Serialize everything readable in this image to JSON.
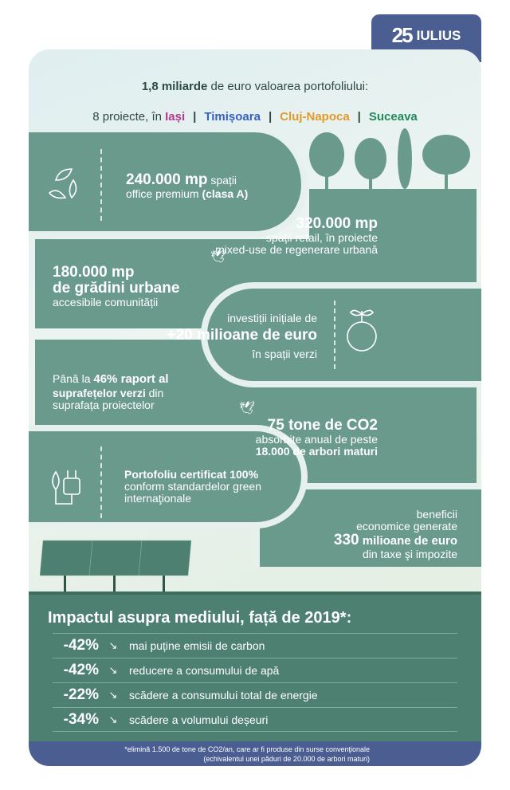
{
  "logo": {
    "number": "25",
    "name": "IULIUS"
  },
  "header": {
    "value_bold": "1,8 miliarde",
    "value_rest": " de euro valoarea portofoliului:",
    "projects_prefix": "8 proiecte, în ",
    "cities": [
      {
        "name": "Iași",
        "color": "#b5388f"
      },
      {
        "name": "Timișoara",
        "color": "#3560c0"
      },
      {
        "name": "Cluj-Napoca",
        "color": "#e39a2a"
      },
      {
        "name": "Suceava",
        "color": "#1f8a5a"
      }
    ],
    "separator": "|"
  },
  "colors": {
    "block": "#6a9a8c",
    "impact": "#4d8070",
    "accent": "#4b5e92"
  },
  "stats": {
    "office": {
      "bold": "240.000 mp",
      "text": " spații",
      "line2": "office premium ",
      "line2_bold": "(clasa A)",
      "icon": "leaves-recycle-icon"
    },
    "retail": {
      "bold": "320.000 mp",
      "line1": "spații retail, în proiecte",
      "line2": "mixed-use de regenerare urbană"
    },
    "gardens": {
      "bold1": "180.000 mp",
      "bold2": "de grădini urbane",
      "line": "accesibile comunității"
    },
    "invest": {
      "line1": "investiții inițiale de",
      "bold": "+20 milioane de euro",
      "line2": "în spații verzi",
      "icon": "globe-sprout-icon"
    },
    "green": {
      "l1a": "Până la ",
      "l1b": "46% raport al",
      "l2a": "suprafețelor verzi",
      "l2b": " din",
      "l3": "suprafața proiectelor"
    },
    "co2": {
      "bold": "75 tone de CO2",
      "line": "absorbite anual de peste",
      "bold2": "18.000 de arbori maturi"
    },
    "cert": {
      "bold": "Portofoliu certificat 100%",
      "line1": "conform standardelor green",
      "line2": "internaţionale",
      "icon": "plug-leaf-icon"
    },
    "econ": {
      "line1": "beneficii",
      "line2": "economice generate",
      "bold_num": "330",
      "bold_rest": " milioane de euro",
      "line3": "din taxe şi impozite"
    }
  },
  "impact": {
    "title": "Impactul asupra mediului, față de 2019*:",
    "icon": "trend-down-icon",
    "rows": [
      {
        "pct": "-42%",
        "desc": "mai puține emisii de carbon"
      },
      {
        "pct": "-42%",
        "desc": "reducere a consumului de apă"
      },
      {
        "pct": "-22%",
        "desc": "scădere a consumului total de energie"
      },
      {
        "pct": "-34%",
        "desc": "scădere a volumului deșeuri"
      }
    ]
  },
  "footnote": {
    "line1": "*elimină 1.500 de tone de CO2/an, care ar fi produse din surse convenţionale",
    "line2": "(echivalentul unei păduri de 20.000 de arbori maturi)"
  }
}
